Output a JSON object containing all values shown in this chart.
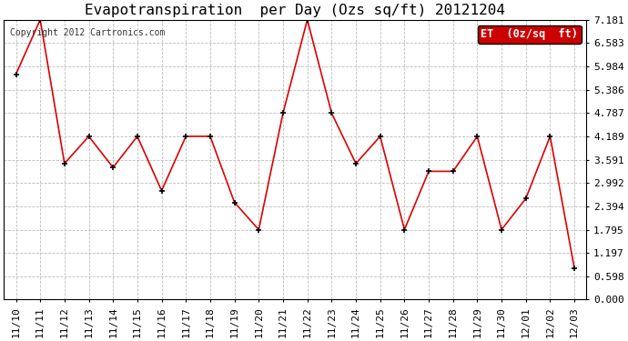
{
  "title": "Evapotranspiration  per Day (Ozs sq/ft) 20121204",
  "copyright": "Copyright 2012 Cartronics.com",
  "legend_label": "ET  (0z/sq  ft)",
  "legend_bg": "#cc0000",
  "legend_text_color": "#ffffff",
  "x_labels": [
    "11/10",
    "11/11",
    "11/12",
    "11/13",
    "11/14",
    "11/15",
    "11/16",
    "11/17",
    "11/18",
    "11/19",
    "11/20",
    "11/21",
    "11/22",
    "11/23",
    "11/24",
    "11/25",
    "11/26",
    "11/27",
    "11/28",
    "11/29",
    "11/30",
    "12/01",
    "12/02",
    "12/03"
  ],
  "y_values": [
    5.784,
    7.181,
    3.491,
    4.189,
    3.391,
    4.189,
    2.794,
    4.189,
    4.189,
    2.494,
    1.795,
    4.787,
    7.181,
    4.787,
    3.491,
    4.189,
    1.795,
    3.291,
    3.291,
    4.189,
    1.795,
    2.594,
    4.189,
    0.798
  ],
  "line_color": "#dd0000",
  "marker_color": "#000000",
  "bg_color": "#ffffff",
  "plot_bg_color": "#ffffff",
  "grid_color": "#bbbbbb",
  "ylim": [
    0.0,
    7.181
  ],
  "yticks": [
    0.0,
    0.598,
    1.197,
    1.795,
    2.394,
    2.992,
    3.591,
    4.189,
    4.787,
    5.386,
    5.984,
    6.583,
    7.181
  ],
  "title_fontsize": 11.5,
  "copyright_fontsize": 7,
  "tick_fontsize": 8,
  "legend_fontsize": 8.5
}
